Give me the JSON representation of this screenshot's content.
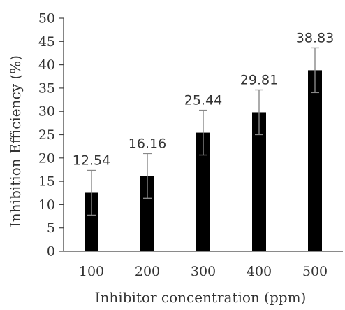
{
  "chart_data": {
    "type": "bar",
    "title": "",
    "xlabel": "Inhibitor concentration (ppm)",
    "ylabel": "Inhibition Efficiency (%)",
    "categories": [
      "100",
      "200",
      "300",
      "400",
      "500"
    ],
    "values": [
      12.54,
      16.16,
      25.44,
      29.81,
      38.83
    ],
    "data_labels": [
      "12.54",
      "16.16",
      "25.44",
      "29.81",
      "38.83"
    ],
    "error": [
      4.8,
      4.8,
      4.8,
      4.8,
      4.8
    ],
    "ylim": [
      0,
      50
    ],
    "yticks": [
      "0",
      "5",
      "10",
      "15",
      "20",
      "25",
      "30",
      "35",
      "40",
      "45",
      "50"
    ],
    "grid": false,
    "legend": "none",
    "colors": {
      "bar": "#000000",
      "error_bar": "#888888",
      "axis": "#444444",
      "text": "#333333"
    }
  }
}
